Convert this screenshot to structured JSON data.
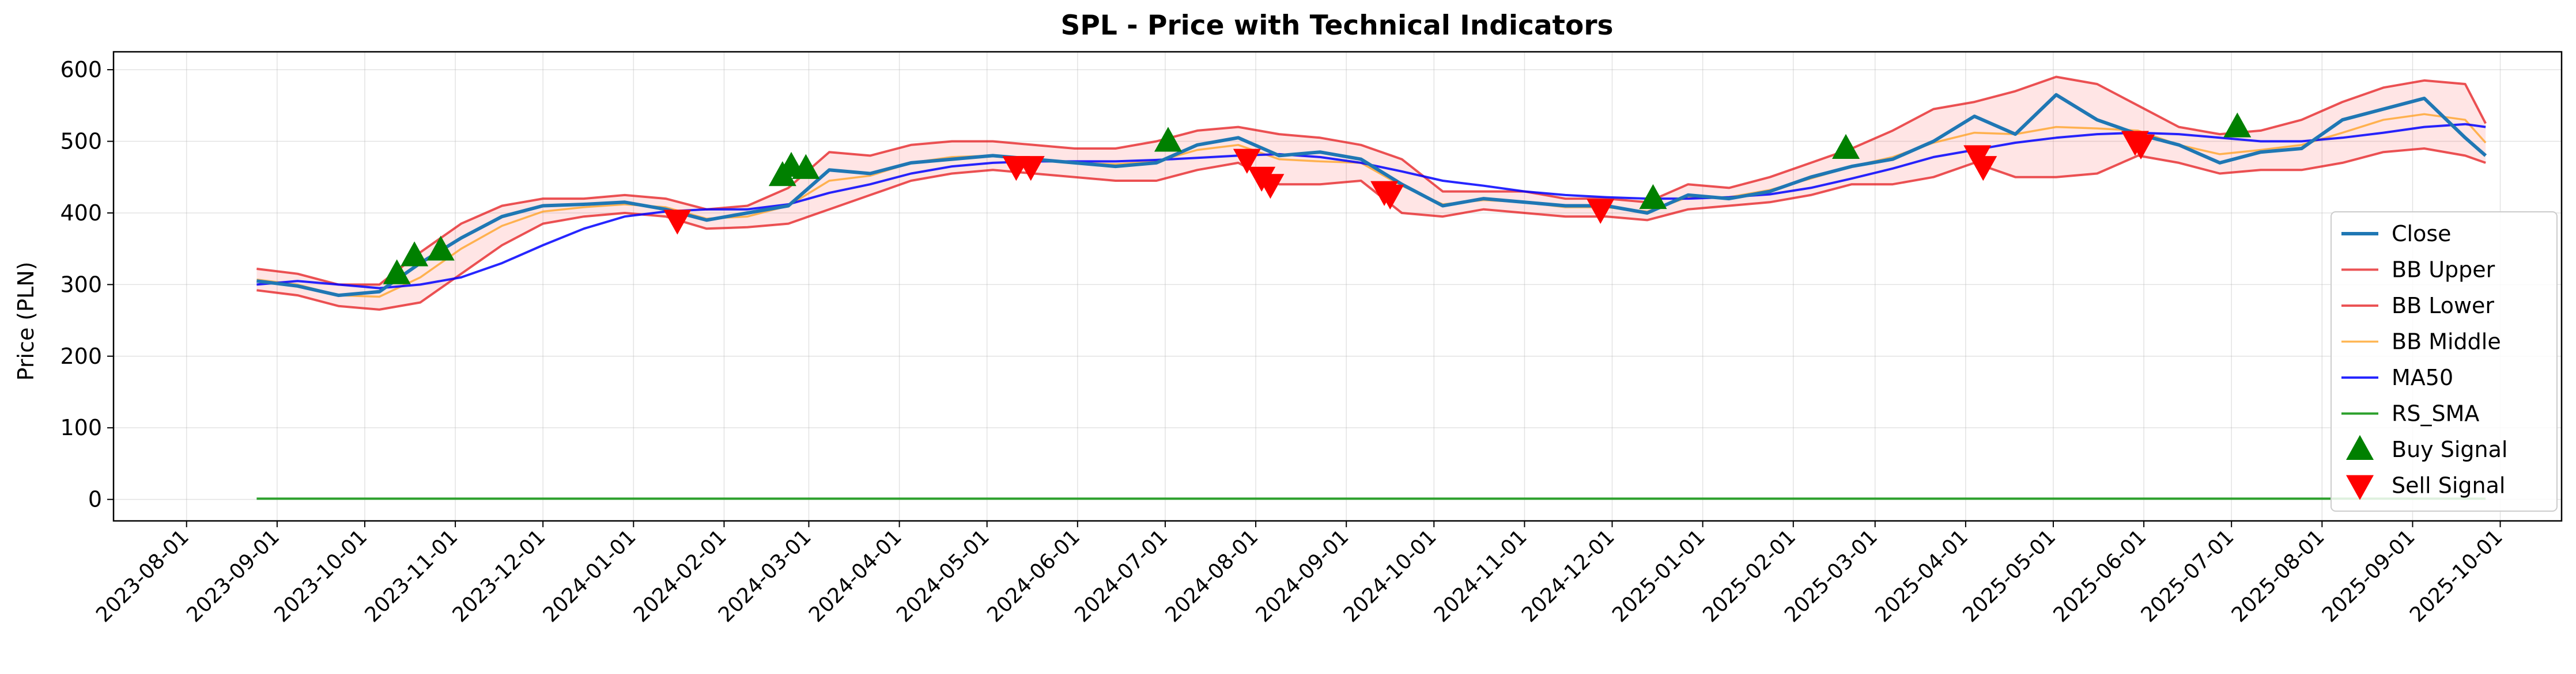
{
  "chart_data": {
    "type": "line",
    "title": "SPL - Price with Technical Indicators",
    "xlabel": "",
    "ylabel": "Price (PLN)",
    "xlim": [
      "2023-07-07",
      "2025-10-22"
    ],
    "ylim": [
      -30,
      625
    ],
    "grid": true,
    "legend_position": "right",
    "x_ticks": [
      "2023-08-01",
      "2023-09-01",
      "2023-10-01",
      "2023-11-01",
      "2023-12-01",
      "2024-01-01",
      "2024-02-01",
      "2024-03-01",
      "2024-04-01",
      "2024-05-01",
      "2024-06-01",
      "2024-07-01",
      "2024-08-01",
      "2024-09-01",
      "2024-10-01",
      "2024-11-01",
      "2024-12-01",
      "2025-01-01",
      "2025-02-01",
      "2025-03-01",
      "2025-04-01",
      "2025-05-01",
      "2025-06-01",
      "2025-07-01",
      "2025-08-01",
      "2025-09-01",
      "2025-10-01"
    ],
    "y_ticks": [
      0,
      100,
      200,
      300,
      400,
      500,
      600
    ],
    "dates": [
      "2023-08-25",
      "2023-09-08",
      "2023-09-22",
      "2023-10-06",
      "2023-10-20",
      "2023-11-03",
      "2023-11-17",
      "2023-12-01",
      "2023-12-15",
      "2023-12-29",
      "2024-01-12",
      "2024-01-26",
      "2024-02-09",
      "2024-02-23",
      "2024-03-08",
      "2024-03-22",
      "2024-04-05",
      "2024-04-19",
      "2024-05-03",
      "2024-05-17",
      "2024-05-31",
      "2024-06-14",
      "2024-06-28",
      "2024-07-12",
      "2024-07-26",
      "2024-08-09",
      "2024-08-23",
      "2024-09-06",
      "2024-09-20",
      "2024-10-04",
      "2024-10-18",
      "2024-11-01",
      "2024-11-15",
      "2024-11-29",
      "2024-12-13",
      "2024-12-27",
      "2025-01-10",
      "2025-01-24",
      "2025-02-07",
      "2025-02-21",
      "2025-03-07",
      "2025-03-21",
      "2025-04-04",
      "2025-04-18",
      "2025-05-02",
      "2025-05-16",
      "2025-05-30",
      "2025-06-13",
      "2025-06-27",
      "2025-07-11",
      "2025-07-25",
      "2025-08-08",
      "2025-08-22",
      "2025-09-05",
      "2025-09-19",
      "2025-09-26"
    ],
    "series": [
      {
        "name": "Close",
        "color": "#1f77b4",
        "values": [
          305,
          298,
          285,
          290,
          330,
          365,
          395,
          410,
          412,
          415,
          405,
          390,
          400,
          410,
          460,
          455,
          470,
          475,
          480,
          475,
          470,
          465,
          470,
          495,
          505,
          480,
          485,
          475,
          440,
          410,
          420,
          415,
          410,
          410,
          400,
          425,
          420,
          430,
          450,
          465,
          475,
          500,
          535,
          510,
          565,
          530,
          510,
          495,
          470,
          485,
          490,
          530,
          545,
          560,
          505,
          480
        ]
      },
      {
        "name": "BB Upper",
        "color": "#e41a1c",
        "values": [
          322,
          315,
          300,
          300,
          345,
          385,
          410,
          420,
          420,
          425,
          420,
          405,
          410,
          435,
          485,
          480,
          495,
          500,
          500,
          495,
          490,
          490,
          500,
          515,
          520,
          510,
          505,
          495,
          475,
          430,
          430,
          430,
          420,
          420,
          415,
          440,
          435,
          450,
          470,
          490,
          515,
          545,
          555,
          570,
          590,
          580,
          550,
          520,
          510,
          515,
          530,
          555,
          575,
          585,
          580,
          525
        ]
      },
      {
        "name": "BB Lower",
        "color": "#e41a1c",
        "values": [
          292,
          285,
          270,
          265,
          275,
          315,
          355,
          385,
          395,
          400,
          395,
          378,
          380,
          385,
          405,
          425,
          445,
          455,
          460,
          455,
          450,
          445,
          445,
          460,
          470,
          440,
          440,
          445,
          400,
          395,
          405,
          400,
          395,
          395,
          390,
          405,
          410,
          415,
          425,
          440,
          440,
          450,
          470,
          450,
          450,
          455,
          480,
          470,
          455,
          460,
          460,
          470,
          485,
          490,
          480,
          470
        ]
      },
      {
        "name": "BB Middle",
        "color": "#ff9f1c",
        "values": [
          307,
          300,
          285,
          283,
          310,
          350,
          382,
          402,
          408,
          412,
          408,
          392,
          395,
          410,
          445,
          452,
          470,
          478,
          480,
          475,
          470,
          468,
          472,
          488,
          495,
          475,
          472,
          470,
          438,
          412,
          418,
          415,
          408,
          408,
          402,
          422,
          422,
          432,
          448,
          465,
          478,
          498,
          512,
          510,
          520,
          518,
          515,
          495,
          482,
          488,
          495,
          512,
          530,
          538,
          530,
          498
        ]
      },
      {
        "name": "MA50",
        "color": "#0000ff",
        "values": [
          300,
          305,
          300,
          295,
          300,
          310,
          330,
          355,
          378,
          395,
          402,
          405,
          405,
          412,
          428,
          440,
          455,
          465,
          470,
          472,
          472,
          472,
          474,
          477,
          480,
          482,
          478,
          470,
          458,
          445,
          438,
          430,
          425,
          422,
          420,
          420,
          422,
          426,
          435,
          448,
          462,
          478,
          488,
          498,
          505,
          510,
          512,
          510,
          505,
          500,
          500,
          505,
          512,
          520,
          524,
          520
        ]
      },
      {
        "name": "RS_SMA",
        "color": "#2ca02c",
        "values": [
          1,
          1,
          1,
          1,
          1,
          1,
          1,
          1,
          1,
          1,
          1,
          1,
          1,
          1,
          1,
          1,
          1,
          1,
          1,
          1,
          1,
          1,
          1,
          1,
          1,
          1,
          1,
          1,
          1,
          1,
          1,
          1,
          1,
          1,
          1,
          1,
          1,
          1,
          1,
          1,
          1,
          1,
          1,
          1,
          1,
          1,
          1,
          1,
          1,
          1,
          1,
          1,
          1,
          1,
          1,
          1
        ]
      }
    ],
    "buy_signal": {
      "name": "Buy Signal",
      "color": "#008000",
      "points": [
        [
          "2023-10-12",
          315
        ],
        [
          "2023-10-18",
          340
        ],
        [
          "2023-10-27",
          348
        ],
        [
          "2024-02-21",
          452
        ],
        [
          "2024-02-24",
          465
        ],
        [
          "2024-02-29",
          462
        ],
        [
          "2024-07-02",
          500
        ],
        [
          "2024-12-15",
          420
        ],
        [
          "2025-02-19",
          490
        ],
        [
          "2025-07-03",
          520
        ]
      ]
    },
    "sell_signal": {
      "name": "Sell Signal",
      "color": "#ff0000",
      "points": [
        [
          "2024-01-16",
          390
        ],
        [
          "2024-05-11",
          465
        ],
        [
          "2024-05-16",
          465
        ],
        [
          "2024-07-29",
          475
        ],
        [
          "2024-08-03",
          450
        ],
        [
          "2024-08-06",
          440
        ],
        [
          "2024-09-14",
          430
        ],
        [
          "2024-09-16",
          425
        ],
        [
          "2024-11-27",
          405
        ],
        [
          "2025-04-05",
          480
        ],
        [
          "2025-04-07",
          465
        ],
        [
          "2025-05-29",
          500
        ],
        [
          "2025-05-31",
          495
        ]
      ]
    }
  }
}
